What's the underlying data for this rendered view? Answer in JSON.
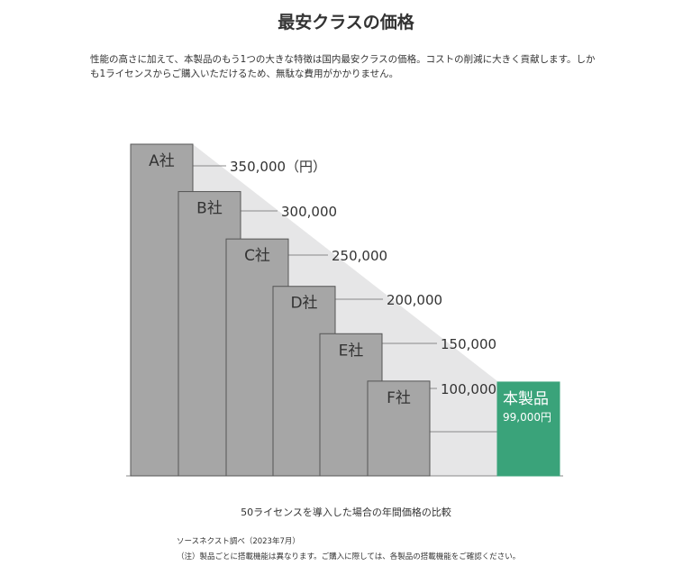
{
  "header": {
    "title": "最安クラスの価格",
    "description": "性能の高さに加えて、本製品のもう1つの大きな特徴は国内最安クラスの価格。コストの削減に大きく貢献します。しかも1ライセンスからご購入いただけるため、無駄な費用がかかりません。"
  },
  "chart_data": {
    "type": "bar",
    "categories": [
      "A社",
      "B社",
      "C社",
      "D社",
      "E社",
      "F社",
      "本製品"
    ],
    "values": [
      350000,
      300000,
      250000,
      200000,
      150000,
      100000,
      99000
    ],
    "highlight_index": 6,
    "highlight_label": "本製品",
    "highlight_value_label": "99,000円",
    "y_tick_labels": [
      "350,000（円）",
      "300,000",
      "250,000",
      "200,000",
      "150,000",
      "100,000"
    ],
    "colors": {
      "bar": "#a6a6a6",
      "bar_border": "#555555",
      "highlight": "#3aa37a",
      "band": "#e6e6e7",
      "line": "#888888"
    }
  },
  "footer": {
    "caption": "50ライセンスを導入した場合の年間価格の比較",
    "source": "ソースネクスト調べ（2023年7月）",
    "note": "（注）製品ごとに搭載機能は異なります。ご購入に際しては、各製品の搭載機能をご確認ください。"
  }
}
